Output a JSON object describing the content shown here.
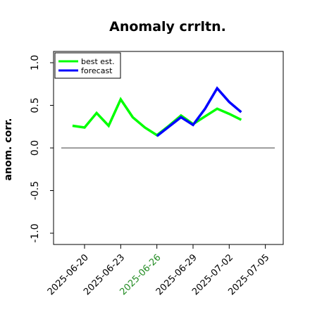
{
  "chart_data": {
    "type": "line",
    "title": "Anomaly crrltn.",
    "xlabel": "",
    "ylabel": "anom. corr.",
    "x_ticks": [
      "2025-06-20",
      "2025-06-23",
      "2025-06-26",
      "2025-06-29",
      "2025-07-02",
      "2025-07-05"
    ],
    "highlighted_x_tick": "2025-06-26",
    "highlight_color": "#228b22",
    "ylim": [
      -1.0,
      1.0
    ],
    "y_ticks": [
      "-1.0",
      "-0.5",
      "0.0",
      "0.5",
      "1.0"
    ],
    "reference_line_y": 0.0,
    "legend_position": "top-left",
    "series": [
      {
        "name": "best est.",
        "color": "#00ff00",
        "x": [
          "2025-06-19",
          "2025-06-20",
          "2025-06-21",
          "2025-06-22",
          "2025-06-23",
          "2025-06-24",
          "2025-06-25",
          "2025-06-26",
          "2025-06-27",
          "2025-06-28",
          "2025-06-29",
          "2025-06-30",
          "2025-07-01",
          "2025-07-02",
          "2025-07-03"
        ],
        "values": [
          0.26,
          0.24,
          0.41,
          0.26,
          0.57,
          0.36,
          0.24,
          0.15,
          0.26,
          0.38,
          0.28,
          0.37,
          0.46,
          0.4,
          0.33
        ]
      },
      {
        "name": "forecast",
        "color": "#0000ff",
        "x": [
          "2025-06-26",
          "2025-06-27",
          "2025-06-28",
          "2025-06-29",
          "2025-06-30",
          "2025-07-01",
          "2025-07-02",
          "2025-07-03"
        ],
        "values": [
          0.14,
          0.25,
          0.36,
          0.27,
          0.46,
          0.7,
          0.54,
          0.42
        ]
      }
    ]
  }
}
